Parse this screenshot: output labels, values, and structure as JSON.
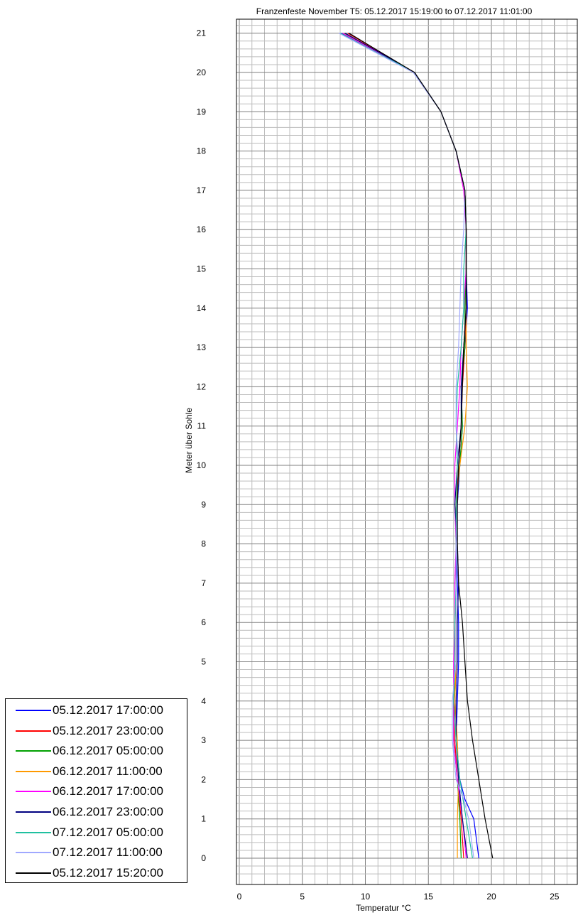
{
  "chart_data": {
    "type": "line",
    "title": "Franzenfeste November T5: 05.12.2017 15:19:00 to 07.12.2017 11:01:00",
    "xlabel": "Temperatur °C",
    "ylabel": "Meter über Sohle",
    "xlim": [
      0,
      27
    ],
    "ylim": [
      -0.5,
      21.5
    ],
    "xticks": [
      0,
      5,
      10,
      15,
      20,
      25
    ],
    "yticks": [
      0,
      1,
      2,
      3,
      4,
      5,
      6,
      7,
      8,
      9,
      10,
      11,
      12,
      13,
      14,
      15,
      16,
      17,
      18,
      19,
      20,
      21
    ],
    "grid": true,
    "legend_position": "bottom-left",
    "series": [
      {
        "name": "05.12.2017 17:00:00",
        "color": "#0000ff",
        "points": [
          [
            8.1,
            21
          ],
          [
            13.9,
            20
          ],
          [
            16.0,
            19
          ],
          [
            17.2,
            18
          ],
          [
            17.9,
            17
          ],
          [
            18.0,
            16
          ],
          [
            18.0,
            15
          ],
          [
            18.1,
            14
          ],
          [
            17.9,
            13
          ],
          [
            17.6,
            12
          ],
          [
            17.7,
            11
          ],
          [
            17.5,
            10
          ],
          [
            17.3,
            9
          ],
          [
            17.2,
            8
          ],
          [
            17.3,
            7
          ],
          [
            17.4,
            6
          ],
          [
            17.4,
            5
          ],
          [
            17.3,
            4
          ],
          [
            17.2,
            3
          ],
          [
            17.5,
            2
          ],
          [
            17.9,
            1.5
          ],
          [
            18.6,
            1
          ],
          [
            19.0,
            0
          ]
        ]
      },
      {
        "name": "05.12.2017 23:00:00",
        "color": "#ff0000",
        "points": [
          [
            8.6,
            21
          ],
          [
            13.9,
            20
          ],
          [
            16.0,
            19
          ],
          [
            17.2,
            18
          ],
          [
            17.9,
            17
          ],
          [
            18.0,
            16
          ],
          [
            18.0,
            15
          ],
          [
            18.0,
            14
          ],
          [
            17.9,
            13
          ],
          [
            17.7,
            12
          ],
          [
            17.6,
            11
          ],
          [
            17.4,
            10
          ],
          [
            17.2,
            9
          ],
          [
            17.2,
            8
          ],
          [
            17.2,
            7
          ],
          [
            17.2,
            6
          ],
          [
            17.2,
            5
          ],
          [
            17.1,
            4
          ],
          [
            17.1,
            3
          ],
          [
            17.3,
            2
          ],
          [
            17.6,
            1
          ],
          [
            17.8,
            0
          ]
        ]
      },
      {
        "name": "06.12.2017 05:00:00",
        "color": "#00a000",
        "points": [
          [
            8.3,
            21
          ],
          [
            13.9,
            20
          ],
          [
            16.0,
            19
          ],
          [
            17.2,
            18
          ],
          [
            17.9,
            17
          ],
          [
            18.0,
            16
          ],
          [
            18.0,
            15
          ],
          [
            17.9,
            14
          ],
          [
            17.9,
            13
          ],
          [
            17.6,
            12
          ],
          [
            17.7,
            11
          ],
          [
            17.5,
            10
          ],
          [
            17.2,
            9
          ],
          [
            17.2,
            8
          ],
          [
            17.2,
            7
          ],
          [
            17.2,
            6
          ],
          [
            17.2,
            5
          ],
          [
            17.0,
            4
          ],
          [
            17.0,
            3
          ],
          [
            17.3,
            2
          ],
          [
            17.5,
            1
          ],
          [
            17.6,
            0
          ]
        ]
      },
      {
        "name": "06.12.2017 11:00:00",
        "color": "#ff9900",
        "points": [
          [
            8.2,
            21
          ],
          [
            13.9,
            20
          ],
          [
            16.0,
            19
          ],
          [
            17.2,
            18
          ],
          [
            17.9,
            17
          ],
          [
            18.0,
            16
          ],
          [
            18.0,
            15
          ],
          [
            18.0,
            14
          ],
          [
            18.0,
            13
          ],
          [
            18.1,
            12
          ],
          [
            17.9,
            11
          ],
          [
            17.5,
            10
          ],
          [
            17.2,
            9
          ],
          [
            17.2,
            8
          ],
          [
            17.2,
            7
          ],
          [
            17.2,
            6
          ],
          [
            17.2,
            5
          ],
          [
            17.1,
            4
          ],
          [
            17.3,
            3
          ],
          [
            17.4,
            2
          ],
          [
            17.3,
            1
          ],
          [
            17.3,
            0
          ]
        ]
      },
      {
        "name": "06.12.2017 17:00:00",
        "color": "#ff00ff",
        "points": [
          [
            8.2,
            21
          ],
          [
            13.9,
            20
          ],
          [
            16.0,
            19
          ],
          [
            17.2,
            18
          ],
          [
            17.8,
            17
          ],
          [
            18.0,
            16
          ],
          [
            18.0,
            15
          ],
          [
            17.8,
            14
          ],
          [
            17.6,
            13
          ],
          [
            17.5,
            12
          ],
          [
            17.3,
            11
          ],
          [
            17.1,
            10
          ],
          [
            17.1,
            9
          ],
          [
            17.2,
            8
          ],
          [
            17.1,
            7
          ],
          [
            17.1,
            6
          ],
          [
            17.0,
            5
          ],
          [
            17.0,
            4
          ],
          [
            17.0,
            3
          ],
          [
            17.3,
            2
          ],
          [
            17.7,
            1
          ],
          [
            18.0,
            0
          ]
        ]
      },
      {
        "name": "06.12.2017 23:00:00",
        "color": "#000080",
        "points": [
          [
            8.4,
            21
          ],
          [
            13.9,
            20
          ],
          [
            16.0,
            19
          ],
          [
            17.2,
            18
          ],
          [
            17.9,
            17
          ],
          [
            18.0,
            16
          ],
          [
            18.0,
            15
          ],
          [
            18.0,
            14
          ],
          [
            17.8,
            13
          ],
          [
            17.6,
            12
          ],
          [
            17.6,
            11
          ],
          [
            17.3,
            10
          ],
          [
            17.1,
            9
          ],
          [
            17.3,
            8
          ],
          [
            17.4,
            7
          ],
          [
            17.3,
            6
          ],
          [
            17.3,
            5
          ],
          [
            17.2,
            4
          ],
          [
            17.2,
            3
          ],
          [
            17.4,
            2
          ],
          [
            17.7,
            1
          ],
          [
            18.1,
            0
          ]
        ]
      },
      {
        "name": "07.12.2017 05:00:00",
        "color": "#20c0a0",
        "points": [
          [
            8.0,
            21
          ],
          [
            13.9,
            20
          ],
          [
            16.0,
            19
          ],
          [
            17.2,
            18
          ],
          [
            17.9,
            17
          ],
          [
            18.0,
            16
          ],
          [
            17.8,
            15
          ],
          [
            17.8,
            14
          ],
          [
            17.6,
            13
          ],
          [
            17.3,
            12
          ],
          [
            17.2,
            11
          ],
          [
            17.3,
            10
          ],
          [
            17.2,
            9
          ],
          [
            17.2,
            8
          ],
          [
            17.2,
            7
          ],
          [
            17.1,
            6
          ],
          [
            17.1,
            5
          ],
          [
            17.0,
            4
          ],
          [
            17.2,
            3
          ],
          [
            17.5,
            2
          ],
          [
            18.0,
            1
          ],
          [
            18.5,
            0
          ]
        ]
      },
      {
        "name": "07.12.2017 11:00:00",
        "color": "#a0a8ff",
        "points": [
          [
            7.9,
            21
          ],
          [
            13.8,
            20
          ],
          [
            16.0,
            19
          ],
          [
            17.2,
            18
          ],
          [
            17.9,
            17
          ],
          [
            17.8,
            16
          ],
          [
            17.6,
            15
          ],
          [
            17.5,
            14
          ],
          [
            17.4,
            13
          ],
          [
            17.2,
            12
          ],
          [
            17.2,
            11
          ],
          [
            17.4,
            10
          ],
          [
            17.3,
            9
          ],
          [
            17.2,
            8
          ],
          [
            17.2,
            7
          ],
          [
            17.2,
            6
          ],
          [
            17.2,
            5
          ],
          [
            16.9,
            4
          ],
          [
            16.9,
            3
          ],
          [
            17.2,
            2
          ],
          [
            17.8,
            1.5
          ],
          [
            18.2,
            1
          ],
          [
            18.6,
            0
          ]
        ]
      },
      {
        "name": "05.12.2017 15:20:00",
        "color": "#000000",
        "points": [
          [
            8.7,
            21
          ],
          [
            13.9,
            20
          ],
          [
            16.0,
            19
          ],
          [
            17.2,
            18
          ],
          [
            17.9,
            17
          ],
          [
            18.0,
            16
          ],
          [
            18.0,
            15
          ],
          [
            18.0,
            14
          ],
          [
            17.8,
            13
          ],
          [
            17.7,
            12
          ],
          [
            17.6,
            11
          ],
          [
            17.4,
            10
          ],
          [
            17.3,
            9
          ],
          [
            17.3,
            8
          ],
          [
            17.4,
            7
          ],
          [
            17.7,
            6
          ],
          [
            17.9,
            5
          ],
          [
            18.1,
            4
          ],
          [
            18.5,
            3
          ],
          [
            19.0,
            2
          ],
          [
            19.5,
            1
          ],
          [
            20.1,
            0
          ]
        ]
      }
    ]
  }
}
